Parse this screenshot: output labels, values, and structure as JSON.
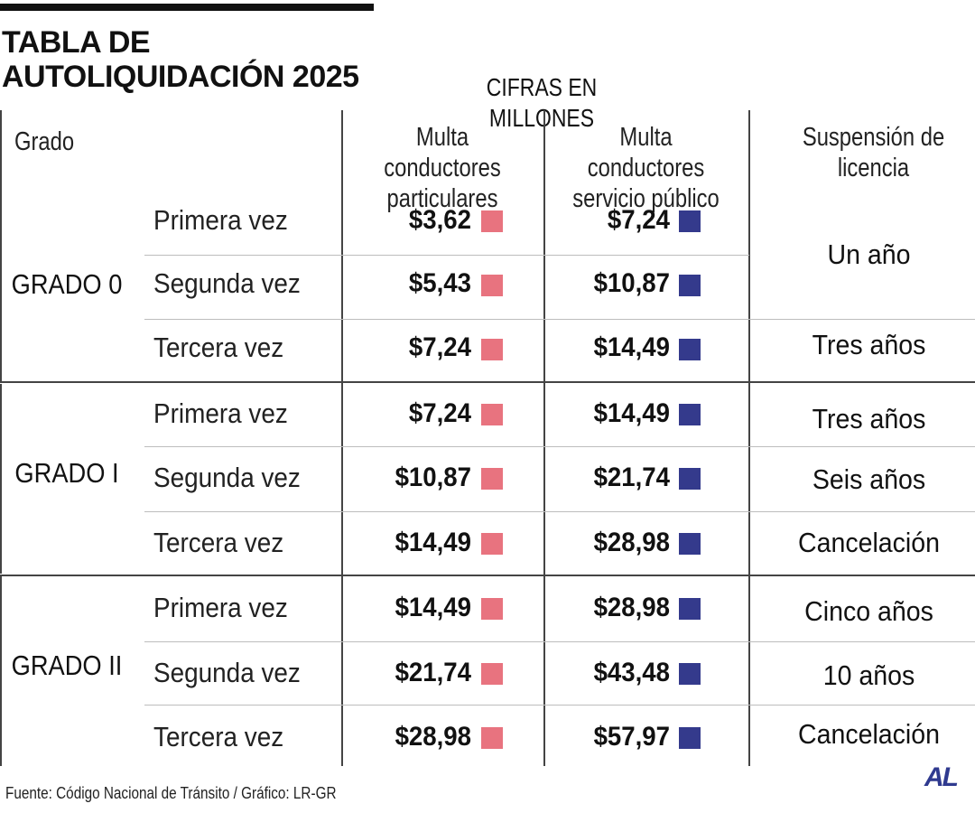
{
  "chart_data": {
    "type": "table",
    "title": "TABLA DE AUTOLIQUIDACIÓN 2025",
    "subtitle": "CIFRAS EN MILLONES",
    "columns": {
      "grado": "Grado",
      "particulares": "Multa conductores particulares",
      "publico": "Multa conductores servicio público",
      "suspension": "Suspensión de licencia"
    },
    "groups": [
      {
        "name": "GRADO 0",
        "rows": [
          {
            "occurrence": "Primera vez",
            "particulares": "$3,62",
            "publico": "$7,24"
          },
          {
            "occurrence": "Segunda vez",
            "particulares": "$5,43",
            "publico": "$10,87"
          },
          {
            "occurrence": "Tercera vez",
            "particulares": "$7,24",
            "publico": "$14,49"
          }
        ],
        "suspension": [
          "Un año",
          "Tres años"
        ]
      },
      {
        "name": "GRADO I",
        "rows": [
          {
            "occurrence": "Primera vez",
            "particulares": "$7,24",
            "publico": "$14,49"
          },
          {
            "occurrence": "Segunda vez",
            "particulares": "$10,87",
            "publico": "$21,74"
          },
          {
            "occurrence": "Tercera vez",
            "particulares": "$14,49",
            "publico": "$28,98"
          }
        ],
        "suspension": [
          "Tres años",
          "Seis años",
          "Cancelación"
        ]
      },
      {
        "name": "GRADO II",
        "rows": [
          {
            "occurrence": "Primera vez",
            "particulares": "$14,49",
            "publico": "$28,98"
          },
          {
            "occurrence": "Segunda vez",
            "particulares": "$21,74",
            "publico": "$43,48"
          },
          {
            "occurrence": "Tercera vez",
            "particulares": "$28,98",
            "publico": "$57,97"
          }
        ],
        "suspension": [
          "Cinco años",
          "10 años",
          "Cancelación"
        ]
      }
    ],
    "legend_colors": {
      "particulares": "#e8737f",
      "publico": "#343a8c"
    }
  },
  "source": "Fuente: Código Nacional de Tránsito / Gráfico: LR-GR",
  "logo": "AL"
}
